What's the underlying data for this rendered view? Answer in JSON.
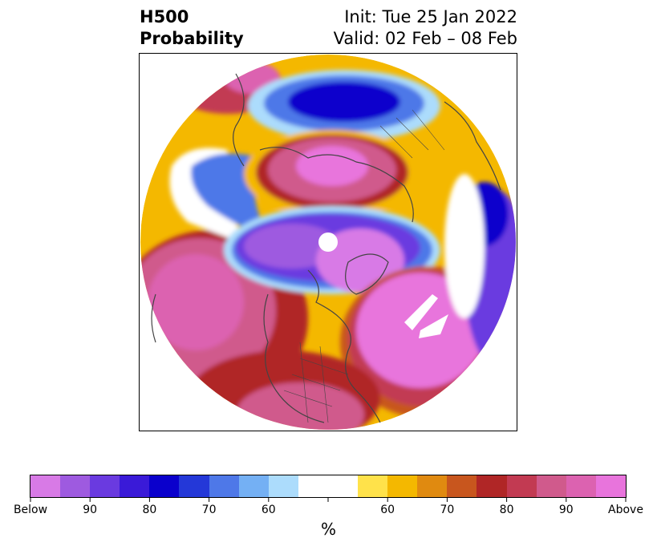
{
  "title": {
    "line1_left": "H500",
    "line2_left": "Probability",
    "line1_right": "Init: Tue 25 Jan 2022",
    "line2_right": "Valid: 02 Feb – 08 Feb"
  },
  "colorbar": {
    "unit": "%",
    "colors": [
      "#d87ae6",
      "#9e5ae0",
      "#6a3ae0",
      "#3a1ad8",
      "#0a00cc",
      "#2438d8",
      "#4e78e8",
      "#74b0f4",
      "#acdcfc",
      "#ffffff",
      "#ffffff",
      "#ffe24a",
      "#f4b800",
      "#e08a10",
      "#c8561e",
      "#b02626",
      "#c23a52",
      "#d05a8c",
      "#dc62b0",
      "#e874dc"
    ],
    "labels": [
      "Below",
      "90",
      "80",
      "70",
      "60",
      "",
      "60",
      "70",
      "80",
      "90",
      "Above"
    ]
  },
  "map": {
    "projection": "north-polar-stereographic",
    "region": "Northern Hemisphere",
    "colors": {
      "below_strong": "#6a3ae0",
      "below_mid": "#0a00cc",
      "below_light": "#4e78e8",
      "below_faint": "#acdcfc",
      "above_faint": "#ffe24a",
      "above_low": "#f4b800",
      "above_mid": "#b02626",
      "above_high": "#d05a8c",
      "above_max": "#e874dc",
      "coast": "#444444"
    }
  }
}
